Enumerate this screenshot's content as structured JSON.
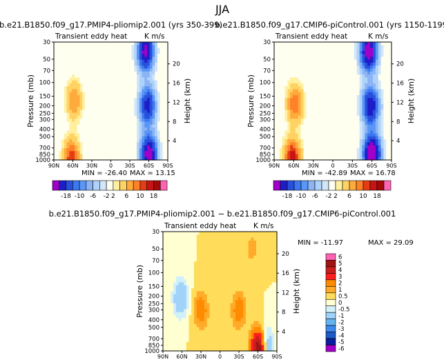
{
  "figure": {
    "title": "JJA"
  },
  "chart_data": [
    {
      "type": "heatmap",
      "title": "b.e21.B1850.f09_g17.PMIP4-pliomip2.001 (yrs 350-399)",
      "subtitle_left": "Transient eddy heat",
      "units": "K m/s",
      "xlabel": "",
      "ylabel": "Pressure (mb)",
      "y2label": "Height (km)",
      "x_ticks": [
        "90N",
        "60N",
        "30N",
        "0",
        "30S",
        "60S",
        "90S"
      ],
      "y_ticks": [
        30,
        50,
        70,
        100,
        150,
        200,
        250,
        300,
        400,
        500,
        700,
        850,
        1000
      ],
      "y2_ticks": [
        4,
        8,
        12,
        16,
        20
      ],
      "ylim": [
        1000,
        30
      ],
      "min_label": "MIN = -26.40",
      "max_label": "MAX = 13.15",
      "stats": {
        "min": -26.4,
        "max": 13.15
      },
      "colorbar": {
        "tick_labels": [
          "-18",
          "-10",
          "-6",
          "-2",
          "2",
          "6",
          "10",
          "18"
        ],
        "levels": [
          -22,
          -18,
          -14,
          -10,
          -8,
          -6,
          -4,
          -2,
          -1,
          1,
          2,
          4,
          6,
          8,
          10,
          14,
          18,
          22
        ]
      },
      "features": [
        {
          "lat": 58,
          "p": 170,
          "value": 6
        },
        {
          "lat": 62,
          "p": 950,
          "value": 10
        },
        {
          "lat": -55,
          "p": 40,
          "value": -20
        },
        {
          "lat": -58,
          "p": 200,
          "value": -16
        },
        {
          "lat": -60,
          "p": 850,
          "value": -22
        },
        {
          "lat": 10,
          "p": 180,
          "value": -1
        }
      ]
    },
    {
      "type": "heatmap",
      "title": "b.e21.B1850.f09_g17.CMIP6-piControl.001 (yrs 1150-1199)",
      "subtitle_left": "Transient eddy heat",
      "units": "K m/s",
      "xlabel": "",
      "ylabel": "Pressure (mb)",
      "y2label": "Height (km)",
      "x_ticks": [
        "90N",
        "60N",
        "30N",
        "0",
        "30S",
        "60S",
        "90S"
      ],
      "y_ticks": [
        30,
        50,
        70,
        100,
        150,
        200,
        250,
        300,
        400,
        500,
        700,
        850,
        1000
      ],
      "y2_ticks": [
        4,
        8,
        12,
        16,
        20
      ],
      "ylim": [
        1000,
        30
      ],
      "min_label": "MIN = -42.89",
      "max_label": "MAX = 16.78",
      "stats": {
        "min": -42.89,
        "max": 16.78
      },
      "colorbar": {
        "tick_labels": [
          "-18",
          "-10",
          "-6",
          "-2",
          "2",
          "6",
          "10",
          "18"
        ],
        "levels": [
          -22,
          -18,
          -14,
          -10,
          -8,
          -6,
          -4,
          -2,
          -1,
          1,
          2,
          4,
          6,
          8,
          10,
          14,
          18,
          22
        ]
      },
      "features": [
        {
          "lat": 58,
          "p": 190,
          "value": 8
        },
        {
          "lat": 62,
          "p": 950,
          "value": 12
        },
        {
          "lat": -55,
          "p": 40,
          "value": -22
        },
        {
          "lat": -58,
          "p": 200,
          "value": -18
        },
        {
          "lat": -60,
          "p": 850,
          "value": -26
        },
        {
          "lat": 10,
          "p": 180,
          "value": -1
        }
      ]
    },
    {
      "type": "heatmap",
      "title": "b.e21.B1850.f09_g17.PMIP4-pliomip2.001 − b.e21.B1850.f09_g17.CMIP6-piControl.001",
      "subtitle_left": "Transient eddy heat",
      "units": "K m/s",
      "xlabel": "",
      "ylabel": "Pressure (mb)",
      "y2label": "Height (km)",
      "x_ticks": [
        "90N",
        "60N",
        "30N",
        "0",
        "30S",
        "60S",
        "90S"
      ],
      "y_ticks": [
        30,
        50,
        70,
        100,
        150,
        200,
        250,
        300,
        400,
        500,
        700,
        850,
        1000
      ],
      "y2_ticks": [
        4,
        8,
        12,
        16,
        20
      ],
      "ylim": [
        1000,
        30
      ],
      "min_label": "MIN = -11.97",
      "max_label": "MAX =  29.09",
      "stats": {
        "min": -11.97,
        "max": 29.09
      },
      "colorbar": {
        "tick_labels": [
          "6",
          "5",
          "4",
          "3",
          "2",
          "1",
          "0.5",
          "0",
          "-0.5",
          "-1",
          "-2",
          "-3",
          "-4",
          "-5",
          "-6"
        ],
        "levels": [
          6,
          5,
          4,
          3,
          2,
          1,
          0.5,
          0,
          -0.5,
          -1,
          -2,
          -3,
          -4,
          -5,
          -6
        ]
      },
      "features": [
        {
          "lat": 62,
          "p": 210,
          "value": -2
        },
        {
          "lat": 30,
          "p": 300,
          "value": 1.5
        },
        {
          "lat": -30,
          "p": 300,
          "value": 1.5
        },
        {
          "lat": -62,
          "p": 950,
          "value": 6
        },
        {
          "lat": -72,
          "p": 900,
          "value": -3
        },
        {
          "lat": -50,
          "p": 50,
          "value": 0.7
        }
      ]
    }
  ]
}
